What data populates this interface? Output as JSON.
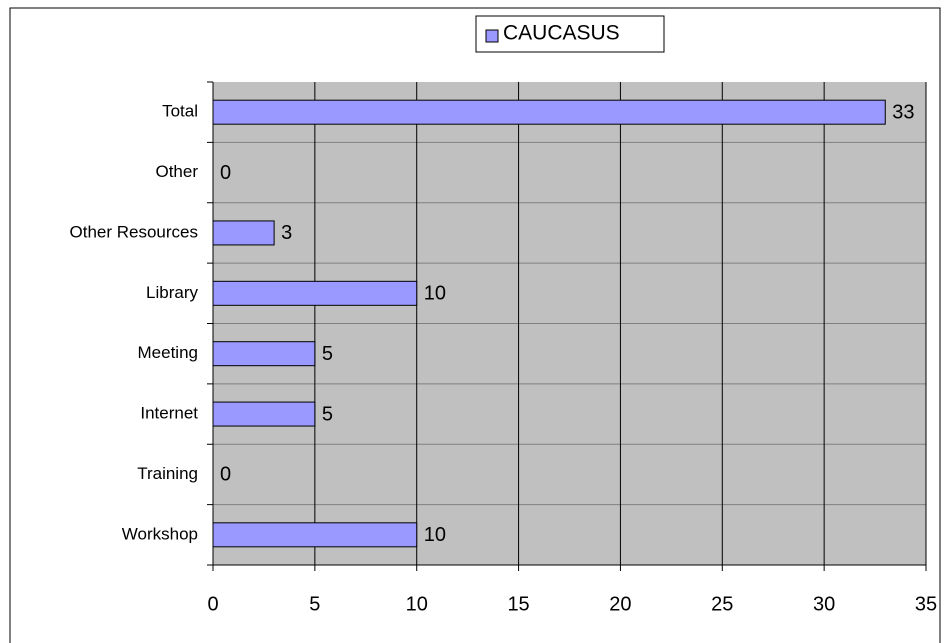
{
  "chart_data": {
    "type": "bar",
    "orientation": "horizontal",
    "categories": [
      "Total",
      "Other",
      "Other Resources",
      "Library",
      "Meeting",
      "Internet",
      "Training",
      "Workshop"
    ],
    "series": [
      {
        "name": "CAUCASUS",
        "color": "#9999ff",
        "values": [
          33,
          0,
          3,
          10,
          5,
          5,
          0,
          10
        ]
      }
    ],
    "xlim": [
      0,
      35
    ],
    "xticks": [
      0,
      5,
      10,
      15,
      20,
      25,
      30,
      35
    ],
    "grid": true,
    "legend": "top"
  }
}
